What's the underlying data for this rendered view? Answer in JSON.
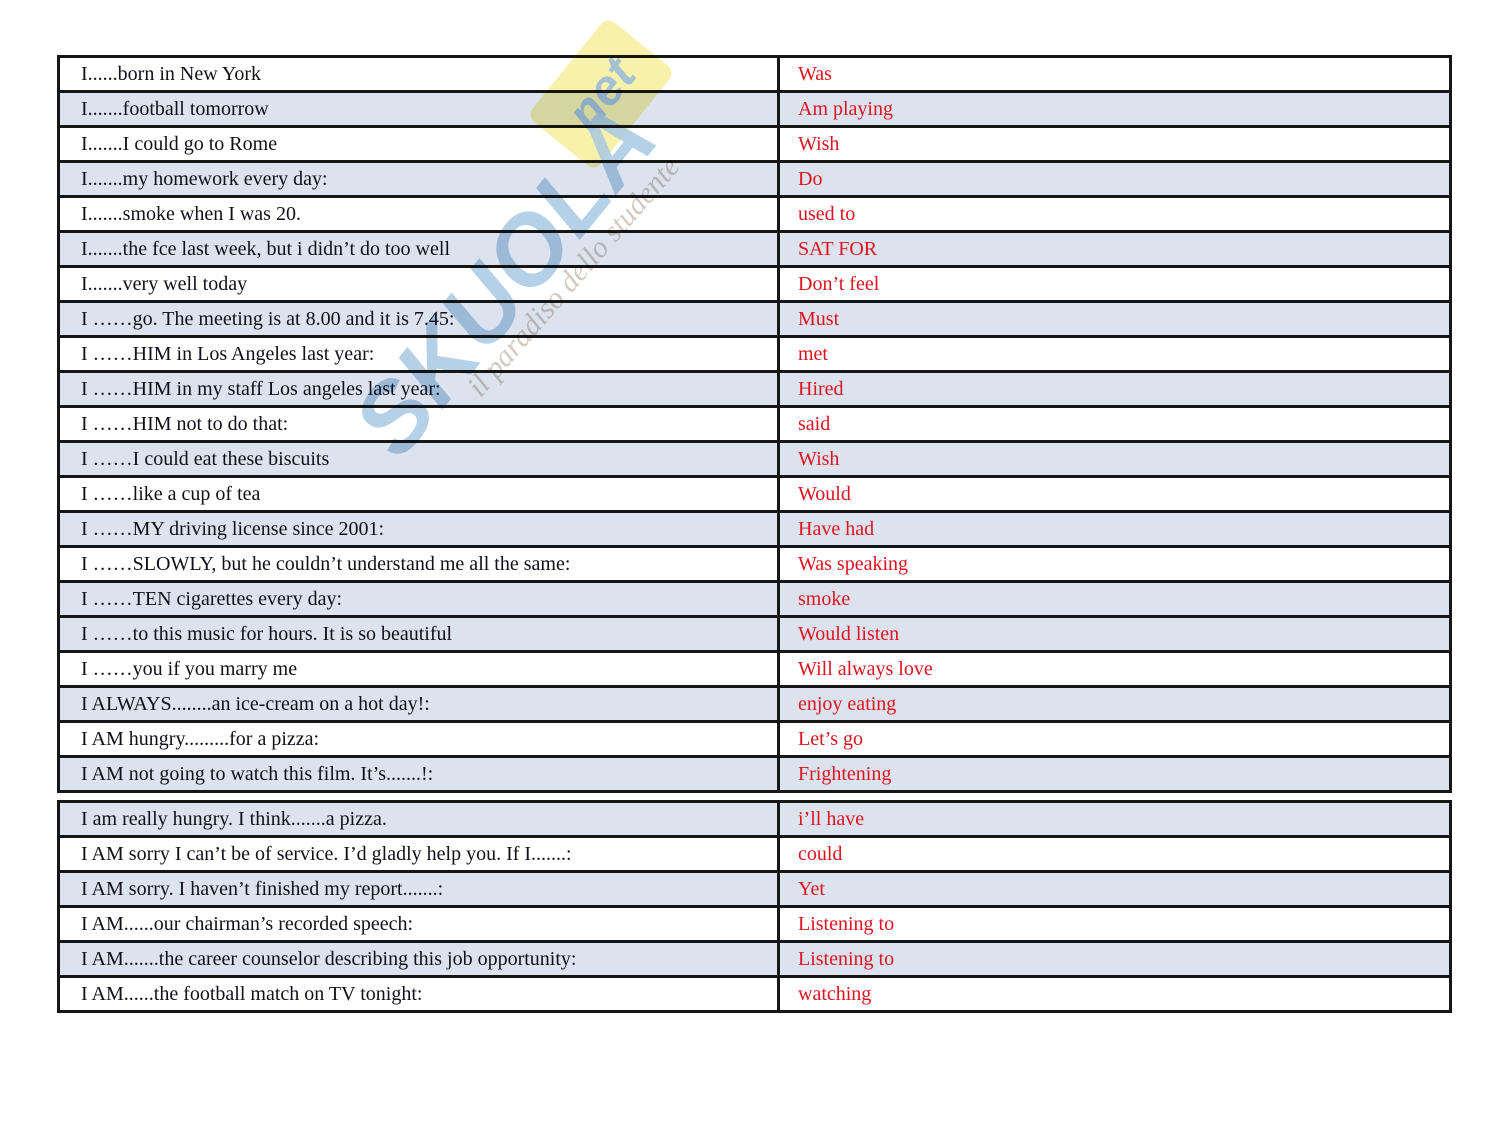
{
  "watermark": {
    "brand": "SKUOLA",
    "brand_suffix": "net",
    "tagline": "il paradiso dello studente",
    "colors": {
      "brand": "#a9c9e3",
      "badge": "#f7f0a2",
      "suffix": "#8db3d8",
      "tagline": "#cfc5bb"
    }
  },
  "table": {
    "colors": {
      "shaded_row": "#dce3ee",
      "plain_row": "#ffffff",
      "border": "#161616",
      "prompt_text": "#10101a",
      "answer_text": "#e0121f"
    },
    "sections": [
      {
        "rows": [
          {
            "prompt": "I......born in New York",
            "answer": "Was",
            "shaded": false
          },
          {
            "prompt": "I.......football tomorrow",
            "answer": "Am playing",
            "shaded": true
          },
          {
            "prompt": "I.......I could go to Rome",
            "answer": "Wish",
            "shaded": false
          },
          {
            "prompt": "I.......my homework every day:",
            "answer": "Do",
            "shaded": true
          },
          {
            "prompt": "I.......smoke when I was 20.",
            "answer": "used to",
            "shaded": false
          },
          {
            "prompt": "I.......the fce last week, but i didn’t do too well",
            "answer": "SAT FOR",
            "shaded": true
          },
          {
            "prompt": "I.......very well today",
            "answer": "Don’t feel",
            "shaded": false
          },
          {
            "prompt": "I ……go. The meeting is at 8.00 and it is 7.45:",
            "answer": "Must",
            "shaded": true
          },
          {
            "prompt": "I ……HIM in Los Angeles last year:",
            "answer": "met",
            "shaded": false
          },
          {
            "prompt": "I ……HIM in my staff Los angeles last year:",
            "answer": "Hired",
            "shaded": true
          },
          {
            "prompt": "I ……HIM not to do that:",
            "answer": "said",
            "shaded": false
          },
          {
            "prompt": "I ……I could eat these biscuits",
            "answer": "Wish",
            "shaded": true
          },
          {
            "prompt": "I ……like a cup of tea",
            "answer": "Would",
            "shaded": false
          },
          {
            "prompt": "I ……MY driving license since 2001:",
            "answer": "Have had",
            "shaded": true
          },
          {
            "prompt": "I ……SLOWLY, but he couldn’t understand me all the same:",
            "answer": "Was speaking",
            "shaded": false
          },
          {
            "prompt": "I ……TEN cigarettes every day:",
            "answer": "smoke",
            "shaded": true
          },
          {
            "prompt": "I ……to this music for hours. It is so beautiful",
            "answer": "Would listen",
            "shaded": true
          },
          {
            "prompt": "I ……you if you marry me",
            "answer": "Will always love",
            "shaded": false
          },
          {
            "prompt": "I ALWAYS........an ice-cream on a hot day!:",
            "answer": "enjoy eating",
            "shaded": true
          },
          {
            "prompt": "I AM hungry.........for a pizza:",
            "answer": "Let’s go",
            "shaded": false
          },
          {
            "prompt": "I AM not going to watch this film. It’s.......!:",
            "answer": "Frightening",
            "shaded": true
          }
        ]
      },
      {
        "rows": [
          {
            "prompt": "I am really hungry. I think.......a pizza.",
            "answer": "i’ll have",
            "shaded": true
          },
          {
            "prompt": "I AM sorry I can’t be of service. I’d gladly help you. If I.......:",
            "answer": "could",
            "shaded": false
          },
          {
            "prompt": "I AM sorry. I haven’t finished my report.......:",
            "answer": "Yet",
            "shaded": true
          },
          {
            "prompt": "I AM......our chairman’s recorded speech:",
            "answer": "Listening to",
            "shaded": false
          },
          {
            "prompt": "I AM.......the career counselor describing this job opportunity:",
            "answer": "Listening to",
            "shaded": true
          },
          {
            "prompt": "I AM......the football match on TV tonight:",
            "answer": "watching",
            "shaded": false
          }
        ]
      }
    ]
  }
}
